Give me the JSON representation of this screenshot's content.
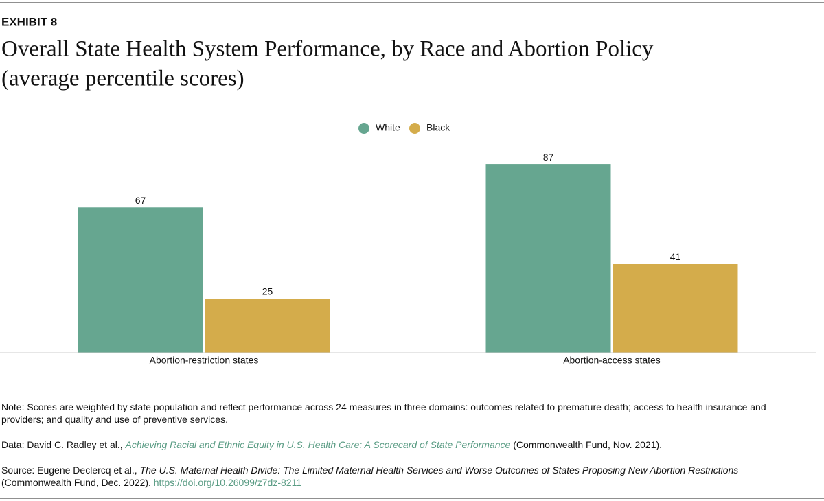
{
  "exhibit": "EXHIBIT 8",
  "chart_data": {
    "type": "bar",
    "title": "Overall State Health System Performance, by Race and Abortion Policy",
    "subtitle": "(average percentile scores)",
    "categories": [
      "Abortion-restriction states",
      "Abortion-access states"
    ],
    "series": [
      {
        "name": "White",
        "color": "#66a690",
        "values": [
          67,
          87
        ]
      },
      {
        "name": "Black",
        "color": "#d4ac4b",
        "values": [
          25,
          41
        ]
      }
    ],
    "ylim": [
      0,
      100
    ],
    "legend": "top",
    "grid": false
  },
  "notes": {
    "note": "Note: Scores are weighted by state population and reflect performance across 24 measures in three domains: outcomes related to premature death; access to health insurance and providers; and quality and use of preventive services.",
    "data": {
      "prefix": "Data: David C. Radley et al.,",
      "title": "Achieving Racial and Ethnic Equity in U.S. Health Care: A Scorecard of State Performance",
      "suffix": "(Commonwealth Fund, Nov. 2021)."
    },
    "source": {
      "prefix": "Source: Eugene Declercq et al.,",
      "title": "The U.S. Maternal Health Divide: The Limited Maternal Health Services and Worse Outcomes of States Proposing New Abortion Restrictions",
      "suffix": "(Commonwealth Fund, Dec. 2022).",
      "link": "https://doi.org/10.26099/z7dz-8211"
    }
  }
}
